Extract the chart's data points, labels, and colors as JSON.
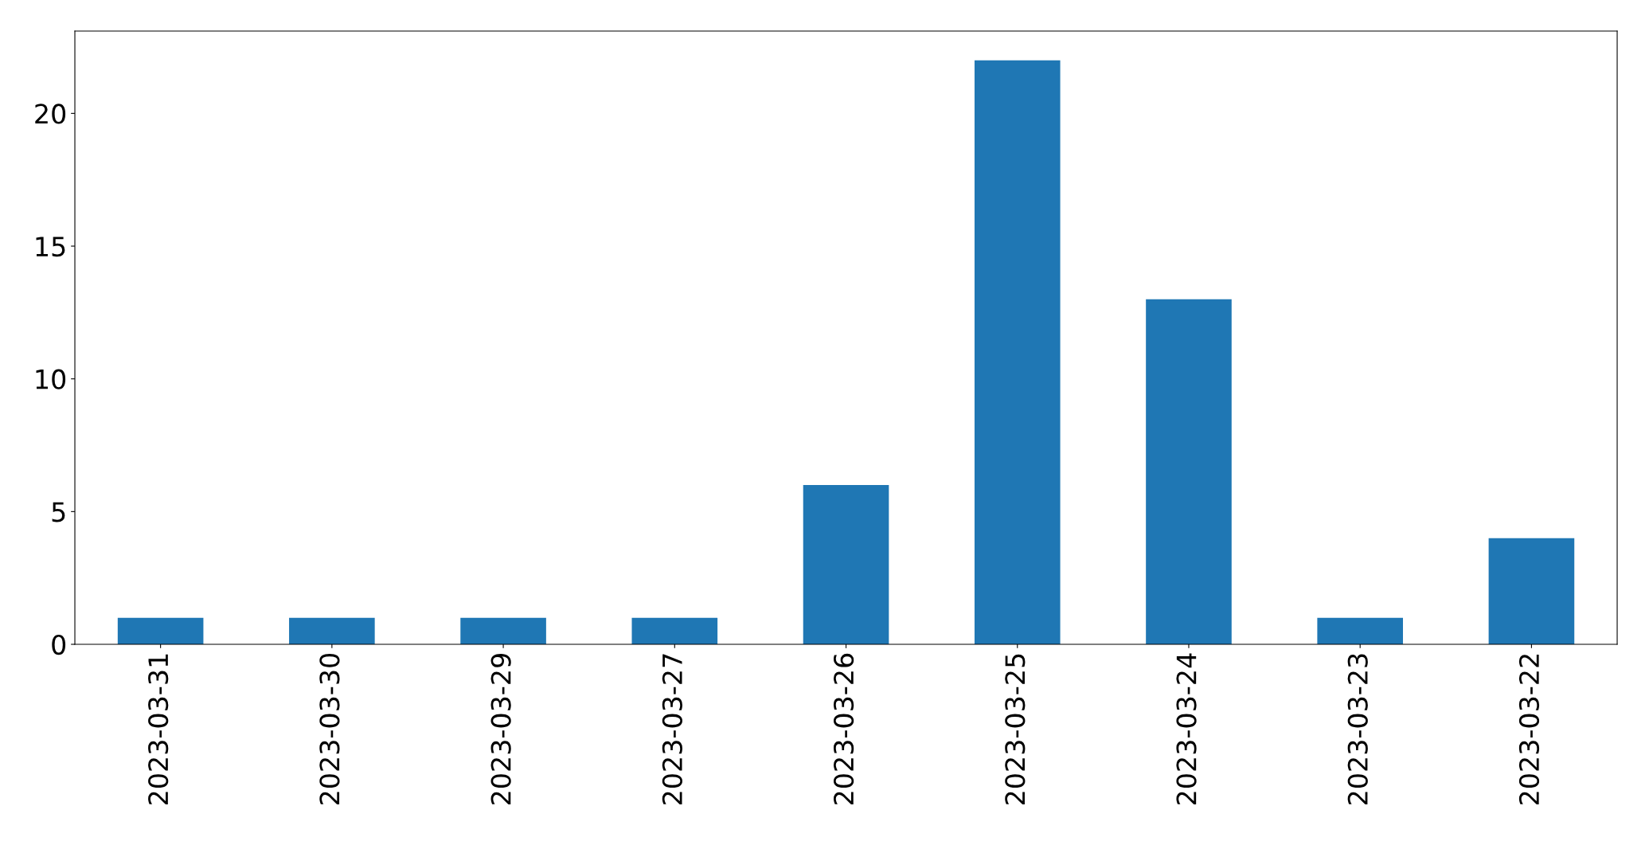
{
  "chart_data": {
    "type": "bar",
    "categories": [
      "2023-03-31",
      "2023-03-30",
      "2023-03-29",
      "2023-03-27",
      "2023-03-26",
      "2023-03-25",
      "2023-03-24",
      "2023-03-23",
      "2023-03-22"
    ],
    "values": [
      1,
      1,
      1,
      1,
      6,
      22,
      13,
      1,
      4
    ],
    "color": "#1f77b4",
    "ylim": [
      0,
      23.1
    ],
    "yticks": [
      0,
      5,
      10,
      15,
      20
    ],
    "grid": false,
    "legend": false
  }
}
